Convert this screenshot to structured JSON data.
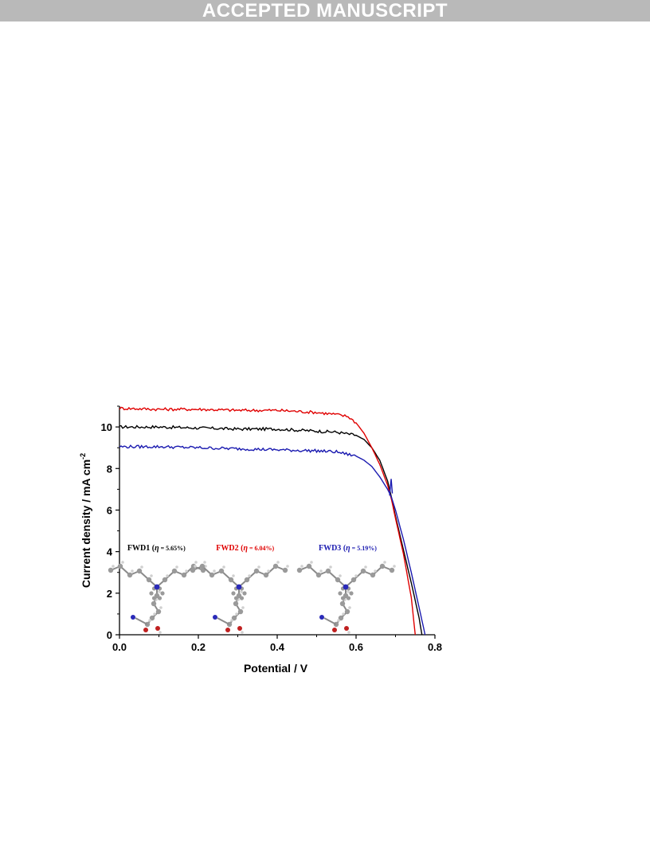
{
  "banner": {
    "text": "ACCEPTED MANUSCRIPT"
  },
  "chart_data": {
    "type": "line",
    "title": "",
    "xlabel": "Potential / V",
    "ylabel_main": "Current density / mA cm",
    "ylabel_sup": "-2",
    "xlim": [
      0.0,
      0.8
    ],
    "ylim": [
      0,
      11
    ],
    "xticks": [
      "0.0",
      "0.2",
      "0.4",
      "0.6",
      "0.8"
    ],
    "yticks": [
      "0",
      "2",
      "4",
      "6",
      "8",
      "10"
    ],
    "grid": false,
    "series": [
      {
        "label": "FWD1",
        "eta": "5.65%",
        "color": "#000000",
        "x": [
          0.0,
          0.1,
          0.2,
          0.3,
          0.4,
          0.5,
          0.55,
          0.6,
          0.62,
          0.64,
          0.66,
          0.68,
          0.69,
          0.7,
          0.72,
          0.74,
          0.76,
          0.767
        ],
        "y": [
          10.0,
          10.0,
          9.95,
          9.9,
          9.9,
          9.8,
          9.75,
          9.6,
          9.4,
          9.0,
          8.4,
          7.4,
          6.6,
          5.7,
          4.1,
          2.5,
          0.8,
          0.0
        ]
      },
      {
        "label": "FWD2",
        "eta": "6.04%",
        "color": "#e00000",
        "x": [
          0.0,
          0.1,
          0.2,
          0.3,
          0.4,
          0.5,
          0.55,
          0.58,
          0.6,
          0.62,
          0.64,
          0.66,
          0.68,
          0.69,
          0.7,
          0.72,
          0.74,
          0.75
        ],
        "y": [
          10.9,
          10.85,
          10.85,
          10.8,
          10.8,
          10.7,
          10.6,
          10.5,
          10.2,
          9.7,
          9.0,
          8.2,
          7.2,
          6.5,
          5.6,
          3.9,
          1.8,
          0.0
        ]
      },
      {
        "label": "FWD3",
        "eta": "5.19%",
        "color": "#1a1ab0",
        "x": [
          0.0,
          0.1,
          0.2,
          0.3,
          0.4,
          0.5,
          0.55,
          0.6,
          0.62,
          0.64,
          0.66,
          0.68,
          0.69,
          0.7,
          0.72,
          0.74,
          0.76,
          0.775
        ],
        "y": [
          9.05,
          9.05,
          9.0,
          8.95,
          8.9,
          8.85,
          8.8,
          8.6,
          8.4,
          8.1,
          7.6,
          7.0,
          6.6,
          6.0,
          4.6,
          3.0,
          1.3,
          0.0
        ]
      }
    ],
    "annotations": [
      {
        "name": "FWD1",
        "open": " (",
        "eta_symbol": "η",
        "eta_text": " = 5.65%)",
        "color": "#000000",
        "x": 0.02
      },
      {
        "name": "FWD2",
        "open": " (",
        "eta_symbol": "η",
        "eta_text": " = 6.04%)",
        "color": "#e00000",
        "x": 0.245
      },
      {
        "name": "FWD3",
        "open": " (",
        "eta_symbol": "η",
        "eta_text": " = 5.19%)",
        "color": "#1a1ab0",
        "x": 0.505
      }
    ]
  }
}
